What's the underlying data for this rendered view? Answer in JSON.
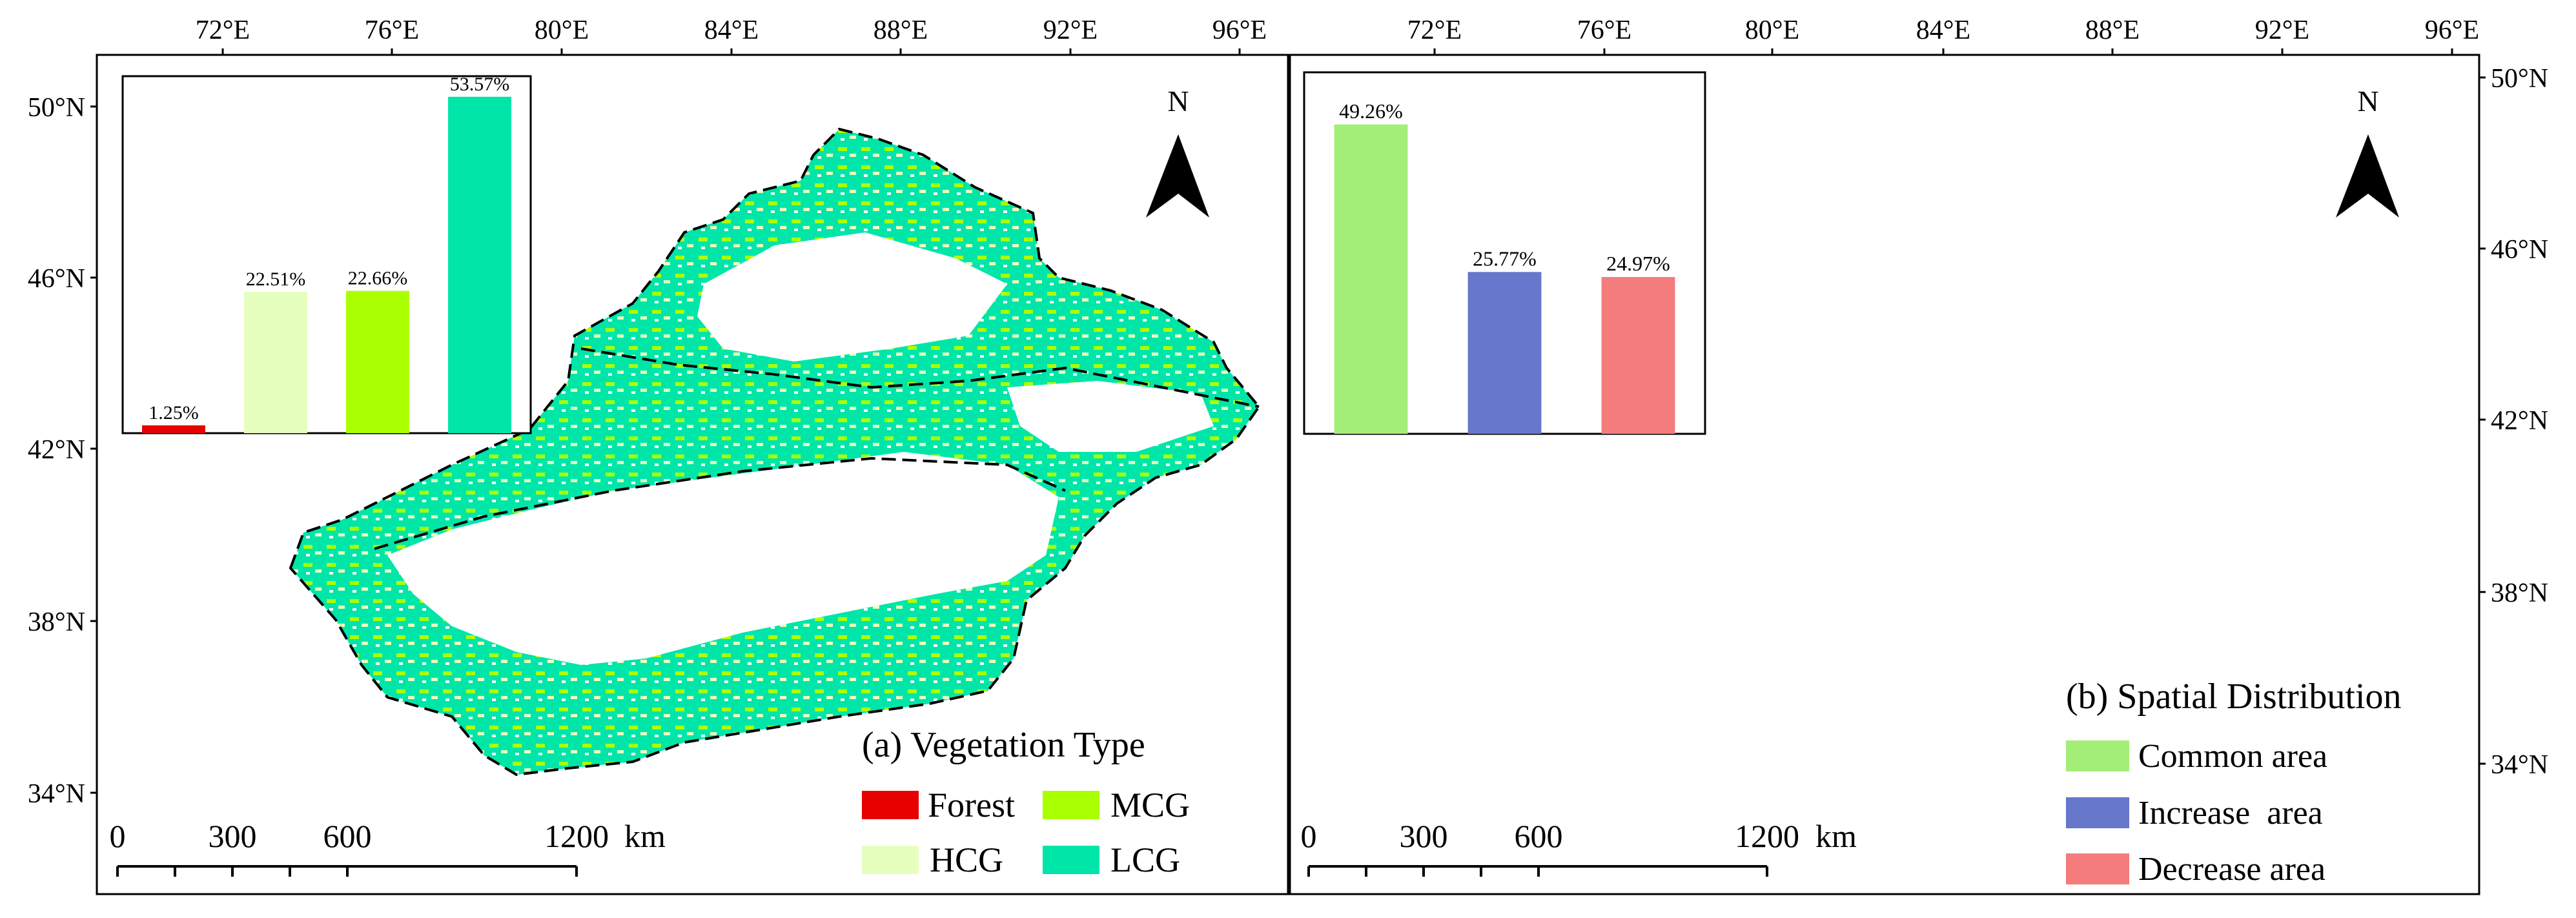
{
  "figure": {
    "lon_ticks": [
      "72°E",
      "76°E",
      "80°E",
      "84°E",
      "88°E",
      "92°E",
      "96°E"
    ],
    "lat_ticks_left": [
      "50°N",
      "46°N",
      "42°N",
      "38°N",
      "34°N"
    ],
    "lat_ticks_right": [
      "50°N",
      "46°N",
      "42°N",
      "38°N",
      "34°N"
    ]
  },
  "panel_a": {
    "title": "(a) Vegetation Type",
    "north": "N",
    "scale": {
      "labels": [
        "0",
        "300",
        "600",
        "1200"
      ],
      "unit": "km"
    },
    "legend": [
      {
        "label": "Forest",
        "color": "#e60000"
      },
      {
        "label": "MCG",
        "color": "#aaff00"
      },
      {
        "label": "HCG",
        "color": "#e7ffbe"
      },
      {
        "label": "LCG",
        "color": "#00e6a9"
      }
    ]
  },
  "panel_b": {
    "title": "(b) Spatial Distribution",
    "north": "N",
    "scale": {
      "labels": [
        "0",
        "300",
        "600",
        "1200"
      ],
      "unit": "km"
    },
    "legend": [
      {
        "label": "Common area",
        "color": "#a3ee77"
      },
      {
        "label": "Increase  area",
        "color": "#6677cc"
      },
      {
        "label": "Decrease area",
        "color": "#f47c7c"
      }
    ]
  },
  "chart_data": [
    {
      "type": "bar",
      "panel": "a",
      "categories": [
        "Forest",
        "HCG",
        "MCG",
        "LCG"
      ],
      "values": [
        1.25,
        22.51,
        22.66,
        53.57
      ],
      "labels": [
        "1.25%",
        "22.51%",
        "22.66%",
        "53.57%"
      ],
      "colors": [
        "#e60000",
        "#e7ffbe",
        "#aaff00",
        "#00e6a9"
      ],
      "ylim": [
        0,
        55
      ]
    },
    {
      "type": "bar",
      "panel": "b",
      "categories": [
        "Common area",
        "Increase area",
        "Decrease area"
      ],
      "values": [
        49.26,
        25.77,
        24.97
      ],
      "labels": [
        "49.26%",
        "25.77%",
        "24.97%"
      ],
      "colors": [
        "#a3ee77",
        "#6677cc",
        "#f47c7c"
      ],
      "ylim": [
        0,
        55
      ]
    }
  ]
}
